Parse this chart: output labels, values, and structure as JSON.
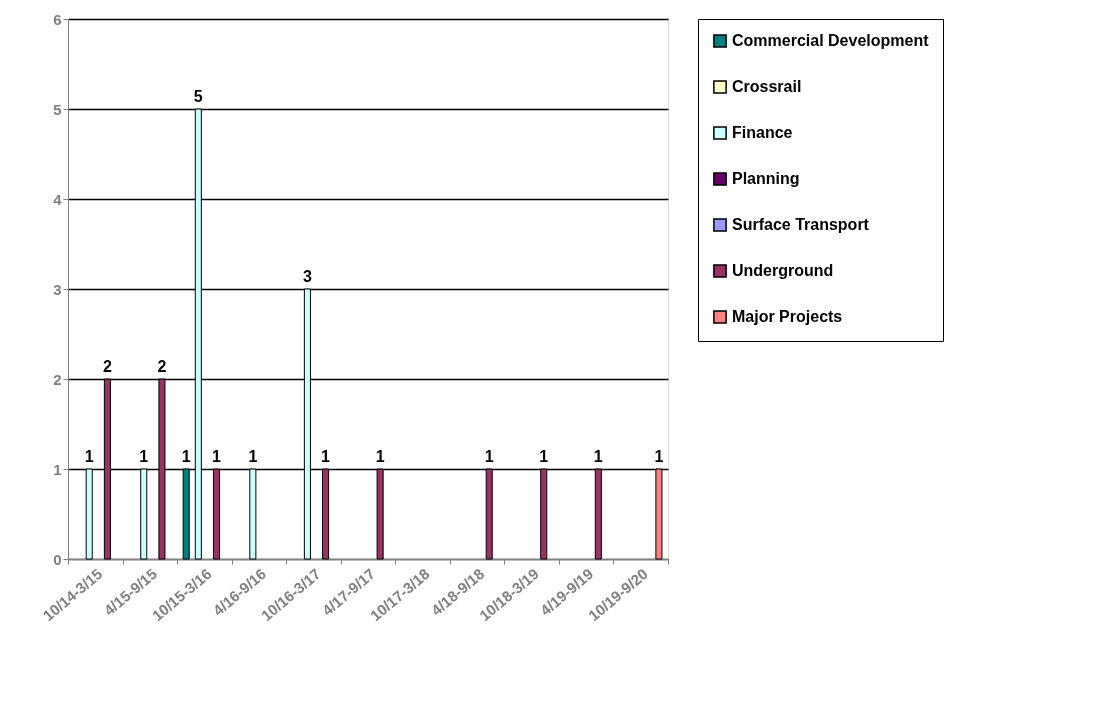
{
  "chart_data": {
    "type": "bar",
    "categories": [
      "10/14-3/15",
      "4/15-9/15",
      "10/15-3/16",
      "4/16-9/16",
      "10/16-3/17",
      "4/17-9/17",
      "10/17-3/18",
      "4/18-9/18",
      "10/18-3/19",
      "4/19-9/19",
      "10/19-9/20"
    ],
    "series": [
      {
        "name": "Commercial Development",
        "color": "#008080",
        "values": [
          null,
          null,
          1,
          null,
          null,
          null,
          null,
          null,
          null,
          null,
          null
        ]
      },
      {
        "name": "Crossrail",
        "color": "#ffffcc",
        "values": [
          null,
          null,
          null,
          null,
          null,
          null,
          null,
          null,
          null,
          null,
          null
        ]
      },
      {
        "name": "Finance",
        "color": "#ccffff",
        "values": [
          1,
          1,
          5,
          1,
          3,
          null,
          null,
          null,
          null,
          null,
          null
        ]
      },
      {
        "name": "Planning",
        "color": "#660066",
        "values": [
          null,
          null,
          null,
          null,
          null,
          null,
          null,
          null,
          null,
          null,
          null
        ]
      },
      {
        "name": "Surface Transport",
        "color": "#9999ff",
        "values": [
          null,
          null,
          null,
          null,
          null,
          null,
          null,
          null,
          null,
          null,
          null
        ]
      },
      {
        "name": "Underground",
        "color": "#993366",
        "values": [
          2,
          2,
          1,
          null,
          1,
          1,
          null,
          1,
          1,
          1,
          null
        ]
      },
      {
        "name": "Major Projects",
        "color": "#ff8080",
        "values": [
          null,
          null,
          null,
          null,
          null,
          null,
          null,
          null,
          null,
          null,
          1
        ]
      }
    ],
    "ylim": [
      0,
      6
    ],
    "yticks": [
      0,
      1,
      2,
      3,
      4,
      5,
      6
    ],
    "grid": "y",
    "legend": "right",
    "data_labels": true
  }
}
